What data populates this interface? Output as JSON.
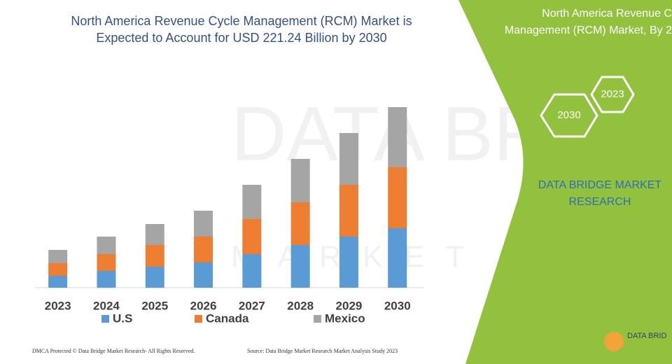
{
  "chart_data": {
    "type": "stacked-bar",
    "title": "North America Revenue Cycle Management (RCM) Market is Expected to Account for USD 221.24 Billion by 2030",
    "categories": [
      "2023",
      "2024",
      "2025",
      "2026",
      "2027",
      "2028",
      "2029",
      "2030"
    ],
    "series": [
      {
        "name": "U.S",
        "color": "#5b9bd5",
        "values": [
          17,
          24,
          30,
          36,
          48,
          61,
          73,
          85
        ]
      },
      {
        "name": "Canada",
        "color": "#ed7d31",
        "values": [
          18,
          24,
          31,
          37,
          50,
          61,
          74,
          87
        ]
      },
      {
        "name": "Mexico",
        "color": "#a5a5a5",
        "values": [
          19,
          25,
          30,
          37,
          49,
          62,
          74,
          86
        ]
      }
    ]
  },
  "panel": {
    "title_lines": [
      "North America Revenue C",
      "Management (RCM) Market, By 2"
    ],
    "hex_a": "2023",
    "hex_b": "2030",
    "brand_lines": [
      "DATA BRIDGE MARKET",
      "RESEARCH"
    ],
    "logo": "DATA BRID"
  },
  "watermark": {
    "main": "DATA BRIDGE",
    "sub": "MARKET RESEARCH"
  },
  "footer": {
    "left": "DMCA Protected © Data Bridge Market Research- All Rights Reserved.",
    "right": "Source: Data Bridge Market Research Market Analysis Study 2023"
  }
}
